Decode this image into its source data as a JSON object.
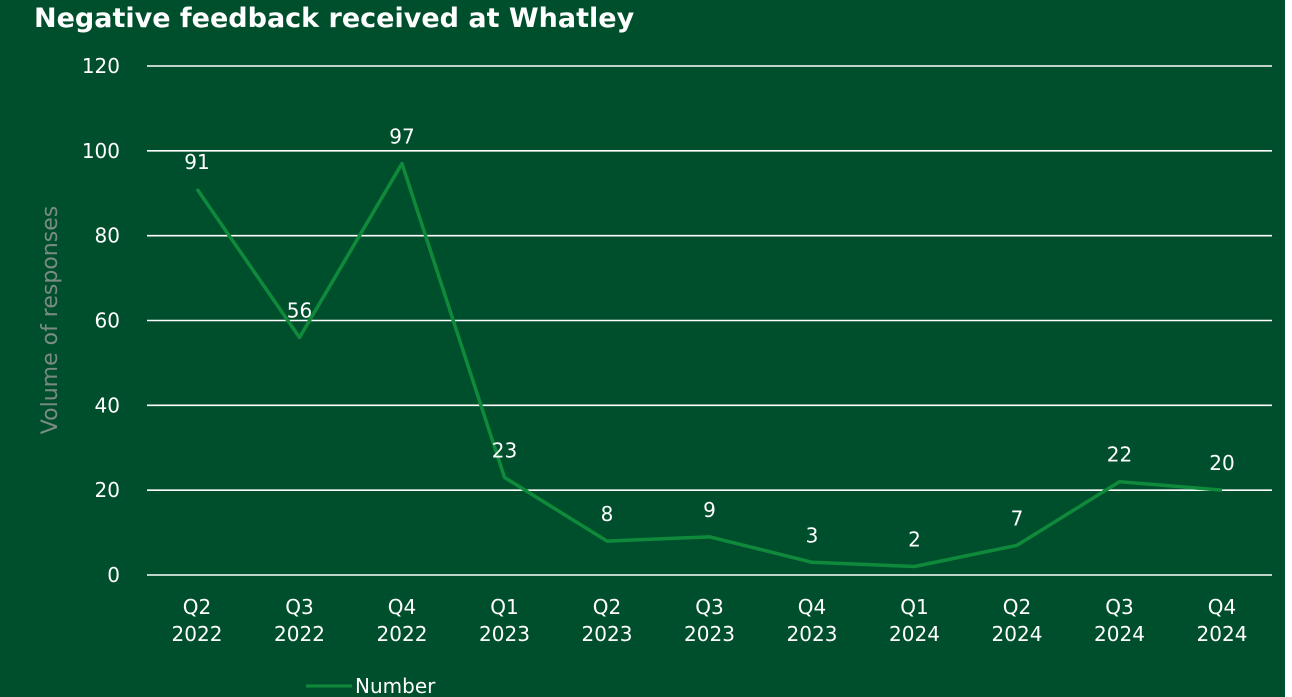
{
  "chart_data": {
    "type": "line",
    "title": "Negative feedback received at Whatley",
    "ylabel": "Volume of responses",
    "xlabel": "",
    "ylim": [
      0,
      120
    ],
    "yticks": [
      0,
      20,
      40,
      60,
      80,
      100,
      120
    ],
    "grid": true,
    "legend_position": "bottom-left",
    "categories": [
      [
        "Q2",
        "2022"
      ],
      [
        "Q3",
        "2022"
      ],
      [
        "Q4",
        "2022"
      ],
      [
        "Q1",
        "2023"
      ],
      [
        "Q2",
        "2023"
      ],
      [
        "Q3",
        "2023"
      ],
      [
        "Q4",
        "2023"
      ],
      [
        "Q1",
        "2024"
      ],
      [
        "Q2",
        "2024"
      ],
      [
        "Q3",
        "2024"
      ],
      [
        "Q4",
        "2024"
      ]
    ],
    "series": [
      {
        "name": "Number",
        "color": "#0f8a3b",
        "values": [
          91,
          56,
          97,
          23,
          8,
          9,
          3,
          2,
          7,
          22,
          20
        ]
      }
    ]
  }
}
